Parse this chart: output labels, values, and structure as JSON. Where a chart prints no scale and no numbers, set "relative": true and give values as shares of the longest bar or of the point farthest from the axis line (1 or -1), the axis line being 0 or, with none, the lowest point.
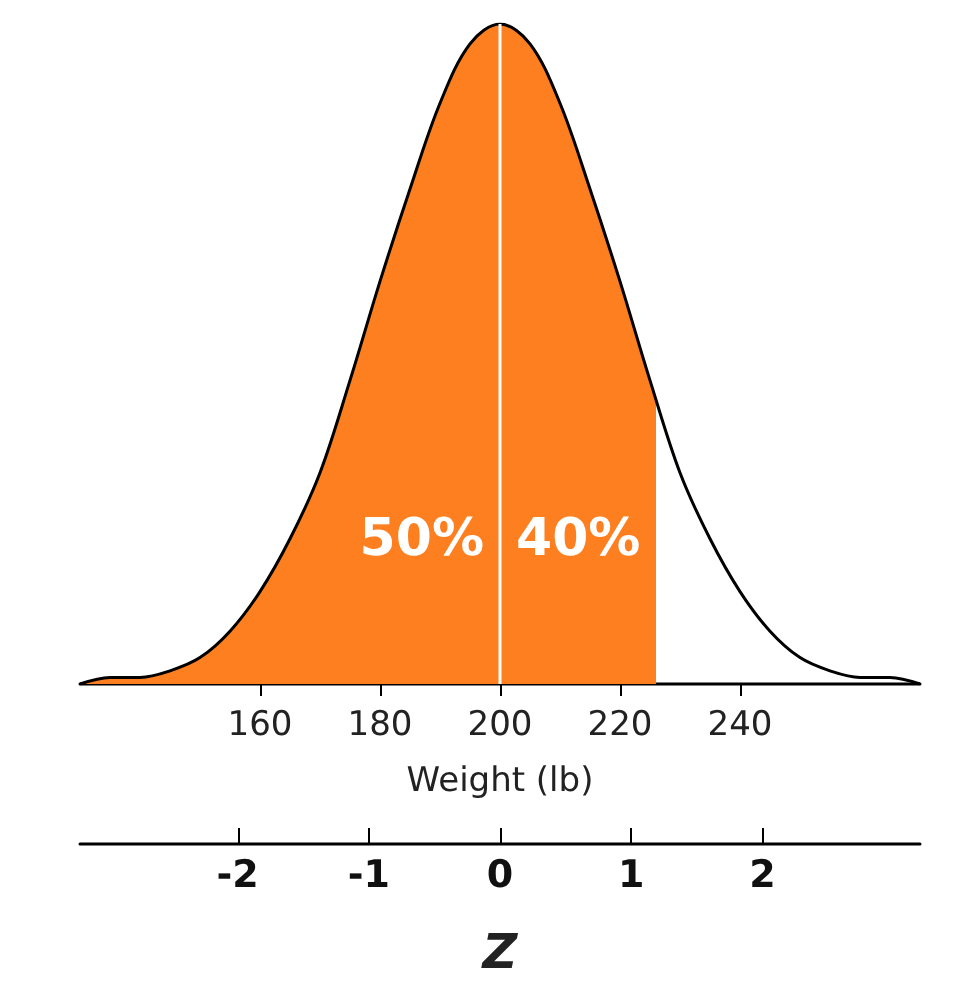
{
  "chart_data": {
    "type": "line",
    "relative": true,
    "xlabel": "Weight (lb)",
    "x2label": "Z",
    "xlim": [
      130,
      270
    ],
    "xticks": [
      160,
      180,
      200,
      220,
      240
    ],
    "x2lim": [
      -3.2,
      3.2
    ],
    "x2ticks": [
      -2,
      -1,
      0,
      1,
      2
    ],
    "series": [
      {
        "type": "area",
        "color": "#fd7f20",
        "x": [
          130,
          135,
          140,
          145,
          150,
          155,
          160,
          165,
          170,
          175,
          180,
          185,
          190,
          195,
          200,
          205,
          210,
          215,
          220,
          225,
          226
        ],
        "values": [
          0.0,
          0.01,
          0.01,
          0.02,
          0.04,
          0.08,
          0.14,
          0.22,
          0.32,
          0.46,
          0.61,
          0.75,
          0.88,
          0.97,
          1,
          0.97,
          0.88,
          0.75,
          0.61,
          0.46,
          0.43
        ]
      },
      {
        "color": "#000000",
        "x": [
          130,
          135,
          140,
          145,
          150,
          155,
          160,
          165,
          170,
          175,
          180,
          185,
          190,
          195,
          200,
          205,
          210,
          215,
          220,
          225,
          230,
          235,
          240,
          245,
          250,
          255,
          260,
          265,
          270
        ],
        "values": [
          0.0,
          0.01,
          0.01,
          0.02,
          0.04,
          0.08,
          0.14,
          0.22,
          0.32,
          0.46,
          0.61,
          0.75,
          0.88,
          0.97,
          1,
          0.97,
          0.88,
          0.75,
          0.61,
          0.46,
          0.32,
          0.22,
          0.14,
          0.08,
          0.04,
          0.02,
          0.01,
          0.01,
          0.0
        ]
      }
    ],
    "ref_lines": [
      {
        "axis": "x",
        "value": 200,
        "color": "#ffffff"
      }
    ],
    "annotations": [
      "50%",
      "40%"
    ],
    "marker": "none",
    "grid": false
  }
}
